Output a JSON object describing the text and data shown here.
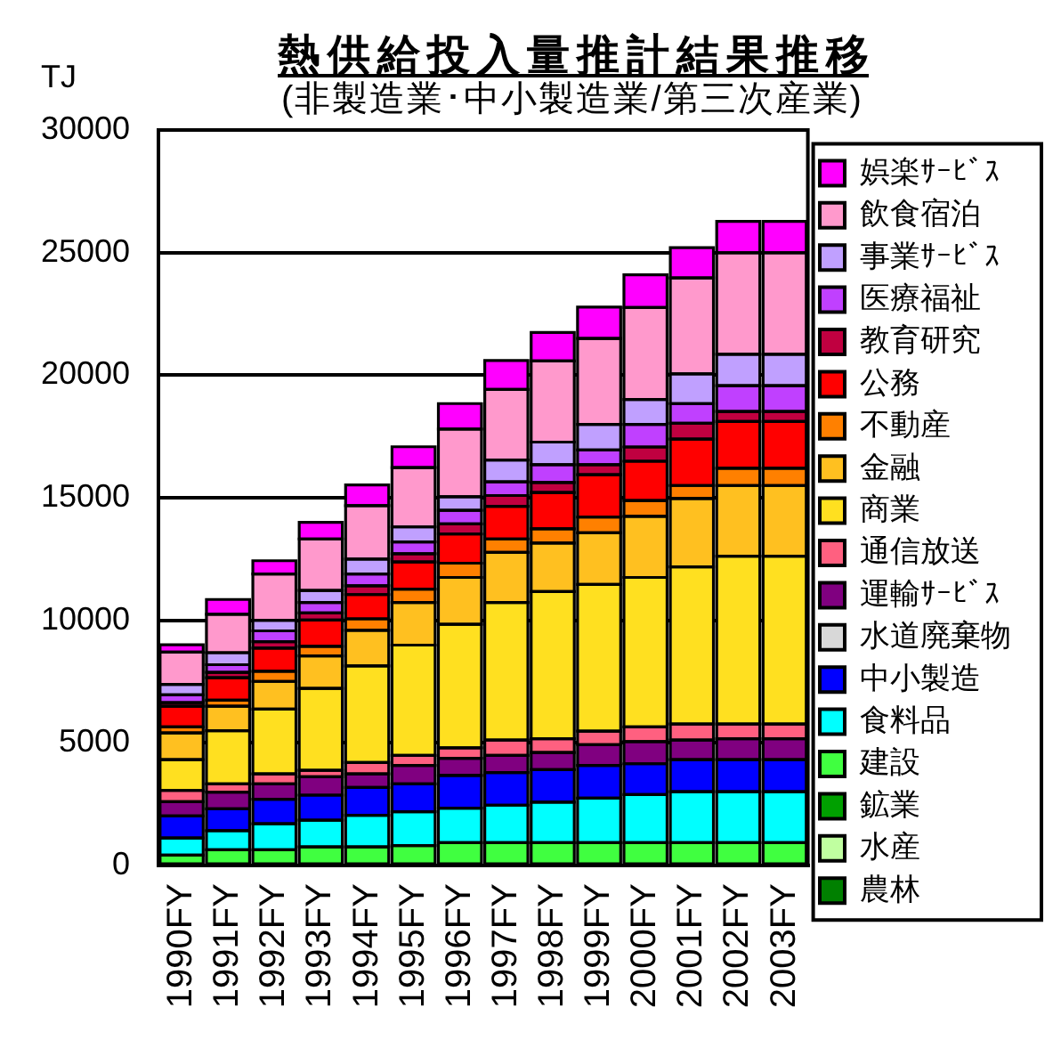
{
  "chart_data": {
    "type": "bar",
    "title": "熱供給投入量推計結果推移",
    "subtitle": "(非製造業･中小製造業/第三次産業)",
    "ylabel": "TJ",
    "categories": [
      "1990FY",
      "1991FY",
      "1992FY",
      "1993FY",
      "1994FY",
      "1995FY",
      "1996FY",
      "1997FY",
      "1998FY",
      "1999FY",
      "2000FY",
      "2001FY",
      "2002FY",
      "2003FY"
    ],
    "series": [
      {
        "name": "農林",
        "color": "#008000",
        "values": [
          null,
          null,
          null,
          null,
          null,
          null,
          null,
          null,
          null,
          null,
          null,
          null,
          null,
          null
        ]
      },
      {
        "name": "水産",
        "color": "#c0ffa0",
        "values": [
          null,
          null,
          null,
          null,
          null,
          null,
          null,
          null,
          null,
          null,
          null,
          null,
          null,
          null
        ]
      },
      {
        "name": "鉱業",
        "color": "#00a000",
        "values": [
          null,
          null,
          null,
          null,
          null,
          null,
          null,
          null,
          null,
          null,
          null,
          null,
          null,
          null
        ]
      },
      {
        "name": "建設",
        "color": "#40ff40",
        "values": [
          420,
          640,
          640,
          760,
          760,
          810,
          930,
          930,
          930,
          930,
          930,
          930,
          930,
          930
        ]
      },
      {
        "name": "食料品",
        "color": "#00ffff",
        "values": [
          700,
          780,
          1060,
          1090,
          1290,
          1380,
          1410,
          1530,
          1650,
          1820,
          1960,
          2080,
          2080,
          2080
        ]
      },
      {
        "name": "中小製造",
        "color": "#0000ff",
        "values": [
          900,
          890,
          1000,
          1020,
          1130,
          1140,
          1330,
          1330,
          1330,
          1330,
          1260,
          1310,
          1310,
          1310
        ]
      },
      {
        "name": "水道廃棄物",
        "color": "#d8d8d8",
        "values": [
          null,
          null,
          null,
          null,
          null,
          null,
          null,
          null,
          null,
          null,
          null,
          null,
          null,
          null
        ]
      },
      {
        "name": "運輸ｻｰﾋﾞｽ",
        "color": "#800080",
        "values": [
          580,
          680,
          630,
          750,
          560,
          750,
          700,
          700,
          700,
          850,
          900,
          800,
          850,
          850
        ]
      },
      {
        "name": "通信放送",
        "color": "#ff6080",
        "values": [
          460,
          340,
          410,
          260,
          460,
          410,
          430,
          630,
          560,
          550,
          600,
          650,
          600,
          600
        ]
      },
      {
        "name": "商業",
        "color": "#ffe020",
        "values": [
          1260,
          2170,
          2640,
          3340,
          3940,
          4500,
          5040,
          5610,
          6000,
          5980,
          6100,
          6410,
          6850,
          6850
        ]
      },
      {
        "name": "金融",
        "color": "#ffc020",
        "values": [
          1090,
          1000,
          1130,
          1330,
          1450,
          1740,
          1910,
          2040,
          1980,
          2110,
          2490,
          2790,
          2880,
          2880
        ]
      },
      {
        "name": "不動産",
        "color": "#ff8000",
        "values": [
          240,
          240,
          410,
          390,
          470,
          540,
          580,
          550,
          580,
          640,
          650,
          530,
          700,
          700
        ]
      },
      {
        "name": "公務",
        "color": "#ff0000",
        "values": [
          850,
          920,
          950,
          1070,
          990,
          1110,
          1190,
          1330,
          1480,
          1730,
          1600,
          1890,
          1910,
          1910
        ]
      },
      {
        "name": "教育研究",
        "color": "#c00040",
        "values": [
          140,
          220,
          260,
          290,
          360,
          340,
          410,
          440,
          410,
          410,
          580,
          650,
          410,
          410
        ]
      },
      {
        "name": "医療福祉",
        "color": "#c040ff",
        "values": [
          320,
          310,
          440,
          430,
          480,
          480,
          560,
          560,
          730,
          600,
          920,
          800,
          1050,
          1050
        ]
      },
      {
        "name": "事業ｻｰﾋﾞｽ",
        "color": "#c0a0ff",
        "values": [
          430,
          490,
          430,
          490,
          610,
          610,
          550,
          890,
          920,
          1040,
          1020,
          1210,
          1280,
          1280
        ]
      },
      {
        "name": "飲食宿泊",
        "color": "#ff99cc",
        "values": [
          1310,
          1570,
          1890,
          2100,
          2180,
          2420,
          2760,
          2880,
          3310,
          3510,
          3750,
          3920,
          4140,
          4140
        ]
      },
      {
        "name": "娯楽ｻｰﾋﾞｽ",
        "color": "#ff00ff",
        "values": [
          300,
          600,
          540,
          680,
          840,
          850,
          1040,
          1180,
          1160,
          1280,
          1330,
          1230,
          1280,
          1280
        ]
      }
    ],
    "stacked": true,
    "ylim": [
      0,
      30000
    ],
    "yticks": [
      0,
      5000,
      10000,
      15000,
      20000,
      25000,
      30000
    ],
    "grid": "y",
    "legend": "right"
  }
}
